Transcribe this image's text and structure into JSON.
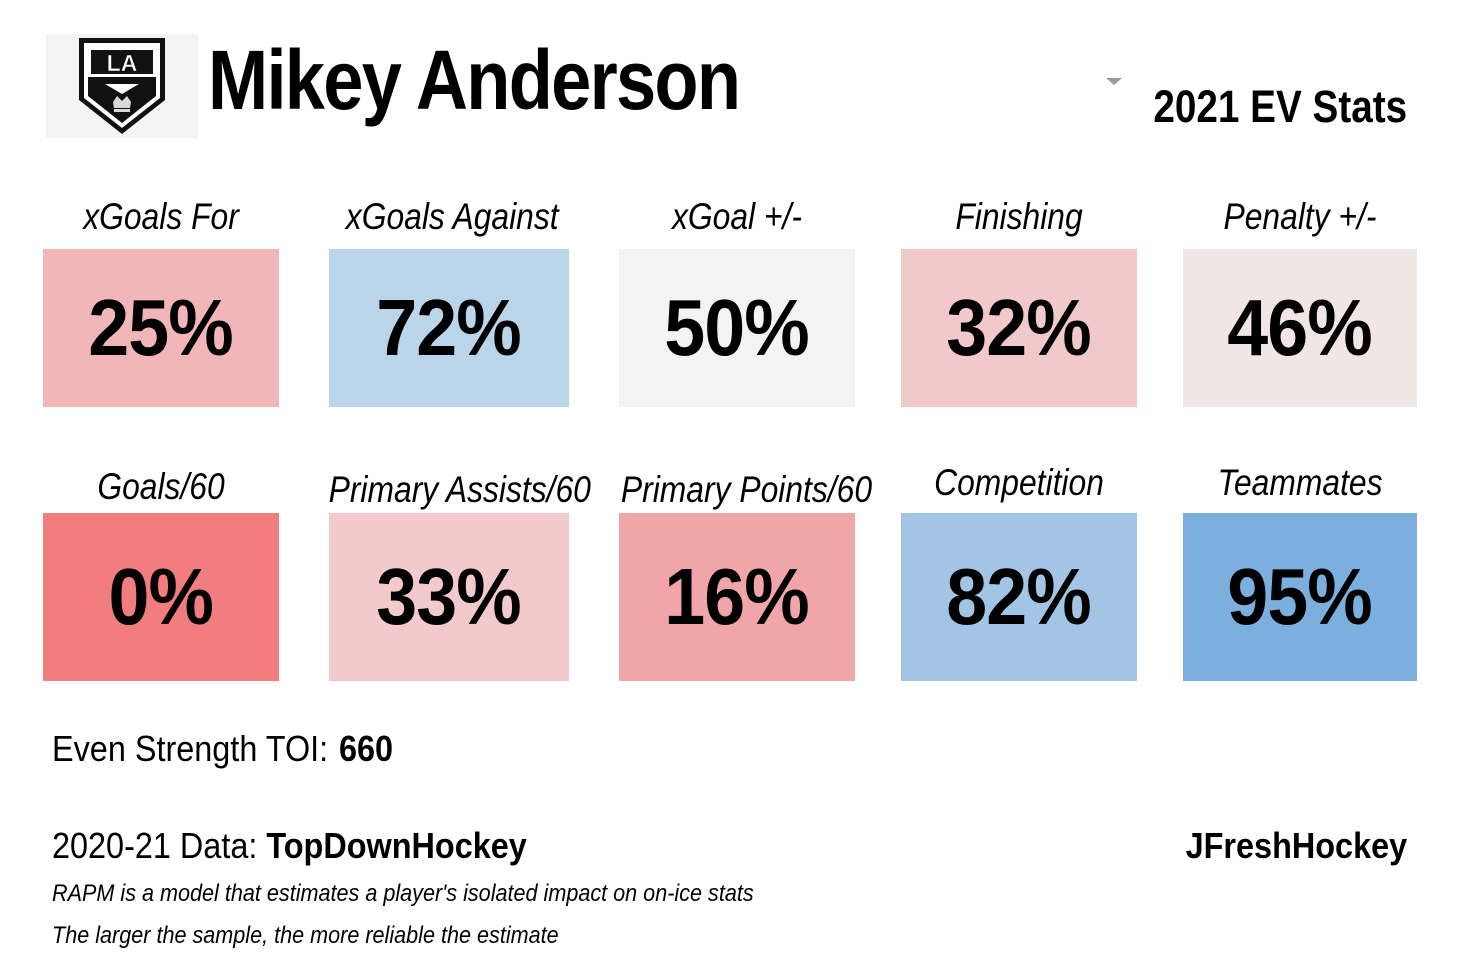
{
  "header": {
    "player_name": "Mikey Anderson",
    "season_label": "2021 EV Stats",
    "logo_text": "LA",
    "logo_icon": "la-kings-shield-logo"
  },
  "stats": [
    {
      "label": "xGoals For",
      "value": "25%",
      "percentile": 25,
      "color": "#f2b6b9"
    },
    {
      "label": "xGoals Against",
      "value": "72%",
      "percentile": 72,
      "color": "#bad5ea"
    },
    {
      "label": "xGoal +/-",
      "value": "50%",
      "percentile": 50,
      "color": "#f3f3f3"
    },
    {
      "label": "Finishing",
      "value": "32%",
      "percentile": 32,
      "color": "#f2c9ca"
    },
    {
      "label": "Penalty +/-",
      "value": "46%",
      "percentile": 46,
      "color": "#f1e6e6"
    },
    {
      "label": "Goals/60",
      "value": "0%",
      "percentile": 0,
      "color": "#f27d7f"
    },
    {
      "label": "Primary Assists/60",
      "value": "33%",
      "percentile": 33,
      "color": "#f3cacc"
    },
    {
      "label": "Primary Points/60",
      "value": "16%",
      "percentile": 16,
      "color": "#f2a5a8"
    },
    {
      "label": "Competition",
      "value": "82%",
      "percentile": 82,
      "color": "#a3c5e5"
    },
    {
      "label": "Teammates",
      "value": "95%",
      "percentile": 95,
      "color": "#7bafdd"
    }
  ],
  "toi": {
    "label": "Even Strength TOI:",
    "value": "660"
  },
  "footer": {
    "source_prefix": "2020-21 Data:",
    "source_name": "TopDownHockey",
    "credit": "JFreshHockey",
    "notes": [
      "RAPM is a model that estimates a player's isolated impact on on-ice stats",
      "The larger the sample, the more reliable the estimate"
    ]
  }
}
